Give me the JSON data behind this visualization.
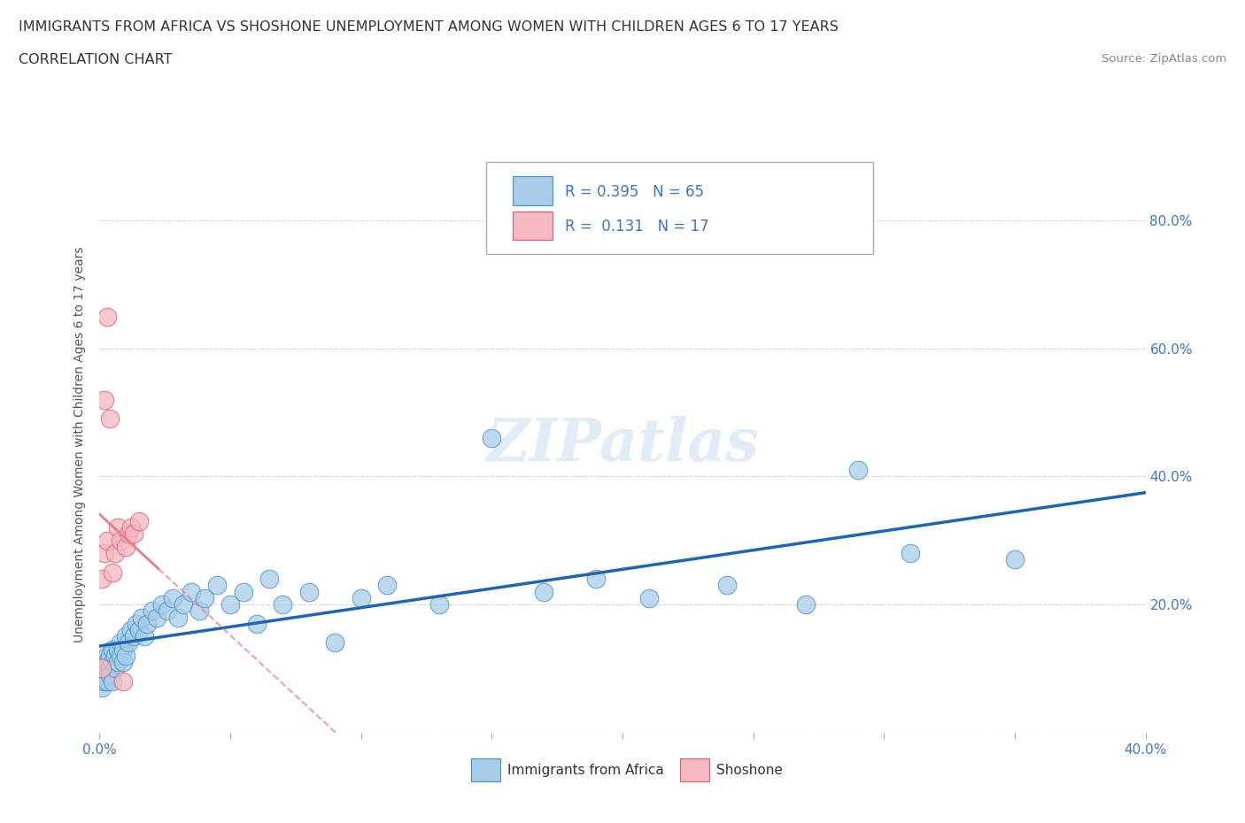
{
  "title_line1": "IMMIGRANTS FROM AFRICA VS SHOSHONE UNEMPLOYMENT AMONG WOMEN WITH CHILDREN AGES 6 TO 17 YEARS",
  "title_line2": "CORRELATION CHART",
  "source": "Source: ZipAtlas.com",
  "ylabel": "Unemployment Among Women with Children Ages 6 to 17 years",
  "xlim": [
    0.0,
    0.4
  ],
  "ylim": [
    0.0,
    0.9
  ],
  "xticks": [
    0.0,
    0.05,
    0.1,
    0.15,
    0.2,
    0.25,
    0.3,
    0.35,
    0.4
  ],
  "xticklabels": [
    "0.0%",
    "",
    "",
    "",
    "",
    "",
    "",
    "",
    "40.0%"
  ],
  "yticks_right": [
    0.0,
    0.2,
    0.4,
    0.6,
    0.8
  ],
  "ytick_right_labels": [
    "",
    "20.0%",
    "40.0%",
    "60.0%",
    "80.0%"
  ],
  "blue_color": "#a8cde8",
  "blue_edge": "#4292c6",
  "pink_color": "#f4b8c1",
  "pink_edge": "#e05c6e",
  "blue_line_color": "#2166ac",
  "pink_line_color": "#e87b8a",
  "R_blue": 0.395,
  "N_blue": 65,
  "R_pink": 0.131,
  "N_pink": 17,
  "watermark": "ZIPatlas",
  "legend_blue_label": "Immigrants from Africa",
  "legend_pink_label": "Shoshone",
  "blue_scatter_x": [
    0.001,
    0.001,
    0.001,
    0.001,
    0.002,
    0.002,
    0.002,
    0.003,
    0.003,
    0.003,
    0.003,
    0.004,
    0.004,
    0.004,
    0.005,
    0.005,
    0.005,
    0.006,
    0.006,
    0.007,
    0.007,
    0.008,
    0.008,
    0.009,
    0.009,
    0.01,
    0.01,
    0.011,
    0.012,
    0.013,
    0.014,
    0.015,
    0.016,
    0.017,
    0.018,
    0.02,
    0.022,
    0.024,
    0.026,
    0.028,
    0.03,
    0.032,
    0.035,
    0.038,
    0.04,
    0.045,
    0.05,
    0.055,
    0.06,
    0.065,
    0.07,
    0.08,
    0.09,
    0.1,
    0.11,
    0.13,
    0.15,
    0.17,
    0.19,
    0.21,
    0.24,
    0.27,
    0.31,
    0.35,
    0.29
  ],
  "blue_scatter_y": [
    0.09,
    0.08,
    0.1,
    0.07,
    0.11,
    0.09,
    0.08,
    0.12,
    0.1,
    0.08,
    0.11,
    0.1,
    0.09,
    0.12,
    0.11,
    0.08,
    0.13,
    0.12,
    0.1,
    0.13,
    0.11,
    0.14,
    0.12,
    0.13,
    0.11,
    0.15,
    0.12,
    0.14,
    0.16,
    0.15,
    0.17,
    0.16,
    0.18,
    0.15,
    0.17,
    0.19,
    0.18,
    0.2,
    0.19,
    0.21,
    0.18,
    0.2,
    0.22,
    0.19,
    0.21,
    0.23,
    0.2,
    0.22,
    0.17,
    0.24,
    0.2,
    0.22,
    0.14,
    0.21,
    0.23,
    0.2,
    0.46,
    0.22,
    0.24,
    0.21,
    0.23,
    0.2,
    0.28,
    0.27,
    0.41
  ],
  "pink_scatter_x": [
    0.001,
    0.001,
    0.002,
    0.002,
    0.003,
    0.003,
    0.004,
    0.005,
    0.006,
    0.007,
    0.008,
    0.009,
    0.01,
    0.011,
    0.012,
    0.013,
    0.015
  ],
  "pink_scatter_y": [
    0.1,
    0.24,
    0.28,
    0.52,
    0.3,
    0.65,
    0.49,
    0.25,
    0.28,
    0.32,
    0.3,
    0.08,
    0.29,
    0.31,
    0.32,
    0.31,
    0.33
  ],
  "grid_color": "#cccccc",
  "background_color": "#ffffff"
}
